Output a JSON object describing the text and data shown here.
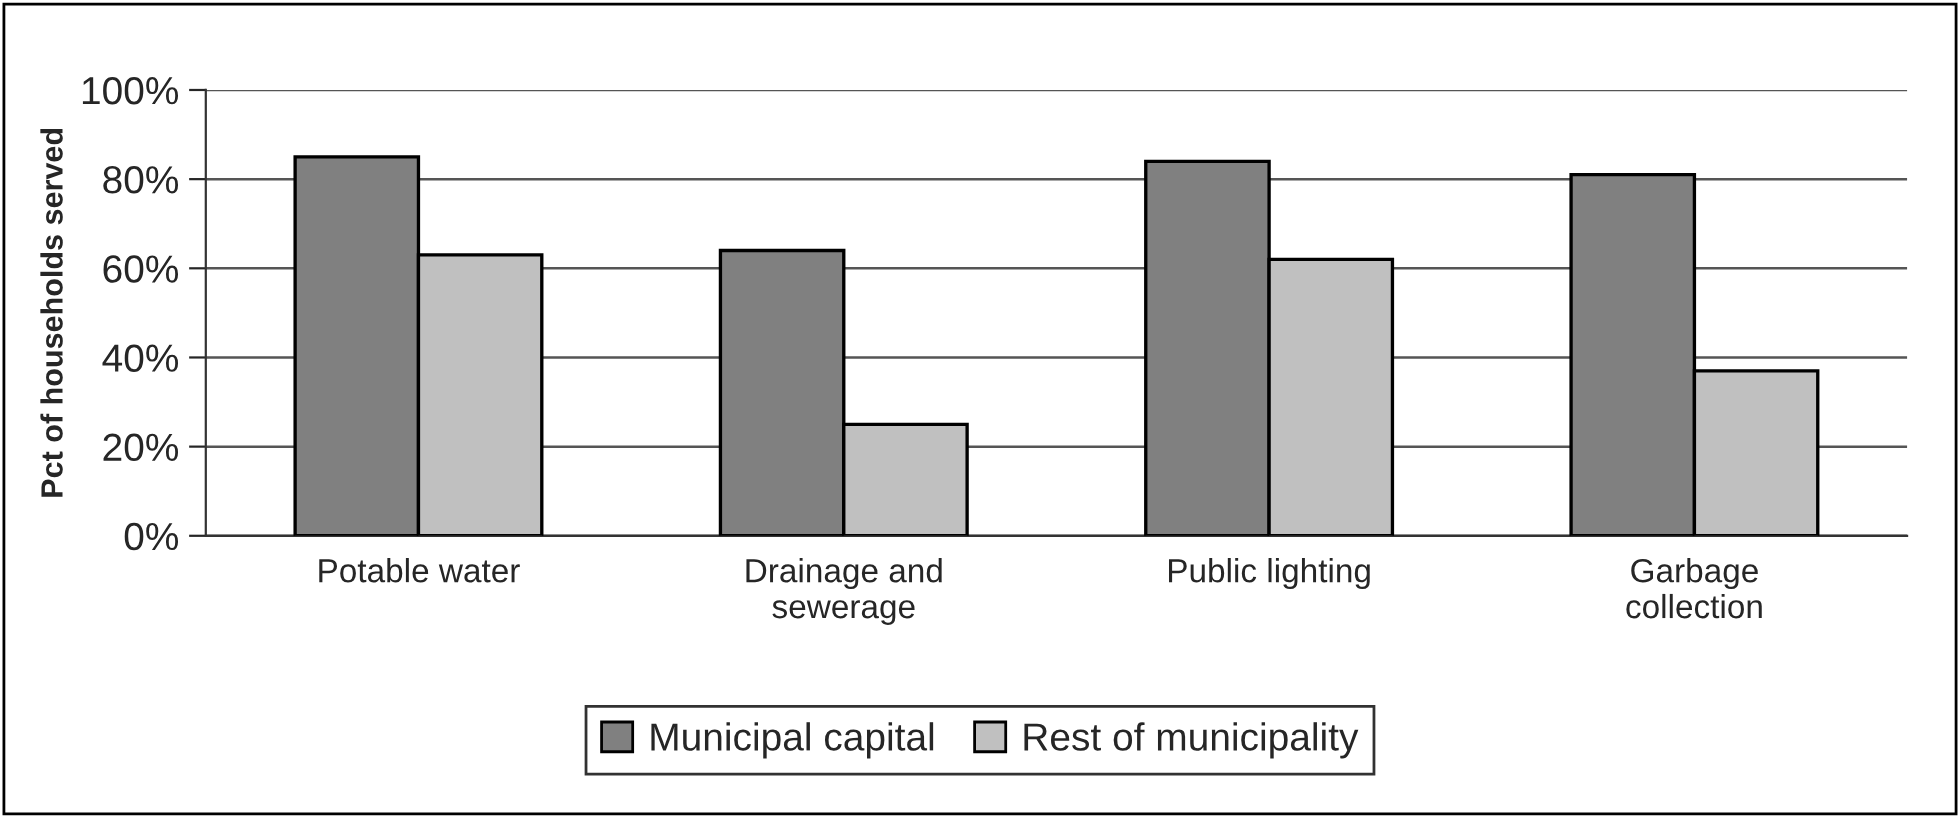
{
  "chart_data": {
    "type": "bar",
    "ylabel": "Pct of households served",
    "categories": [
      "Potable water",
      "Drainage and\nsewerage",
      "Public lighting",
      "Garbage\ncollection"
    ],
    "series": [
      {
        "name": "Municipal capital",
        "color": "#808080",
        "values": [
          85,
          64,
          84,
          81
        ]
      },
      {
        "name": "Rest of municipality",
        "color": "#c0c0c0",
        "values": [
          63,
          25,
          62,
          37
        ]
      }
    ],
    "ylim": [
      0,
      100
    ],
    "yticks": [
      {
        "value": 0,
        "label": "0%"
      },
      {
        "value": 20,
        "label": "20%"
      },
      {
        "value": 40,
        "label": "40%"
      },
      {
        "value": 60,
        "label": "60%"
      },
      {
        "value": 80,
        "label": "80%"
      },
      {
        "value": 100,
        "label": "100%"
      }
    ],
    "grid": "y",
    "legend": "bottom"
  }
}
